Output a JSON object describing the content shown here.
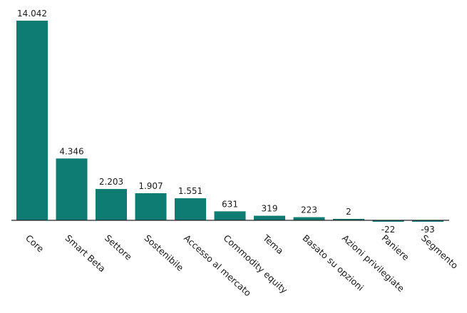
{
  "chart_data": {
    "type": "bar",
    "categories": [
      "Core",
      "Smart Beta",
      "Settore",
      "Sostenibile",
      "Accesso al mercato",
      "Commodity equity",
      "Tema",
      "Basato su opzioni",
      "Azioni privilegiate",
      "Paniere",
      "Segmento"
    ],
    "values": [
      14042,
      4346,
      2203,
      1907,
      1551,
      631,
      319,
      223,
      2,
      -22,
      -93
    ],
    "value_labels": [
      "14.042",
      "4.346",
      "2.203",
      "1.907",
      "1.551",
      "631",
      "319",
      "223",
      "2",
      "-22",
      "-93"
    ],
    "title": "",
    "xlabel": "",
    "ylabel": "",
    "bar_color": "#0e7c72",
    "axis_color": "#222222",
    "grid": false,
    "legend": "none"
  }
}
